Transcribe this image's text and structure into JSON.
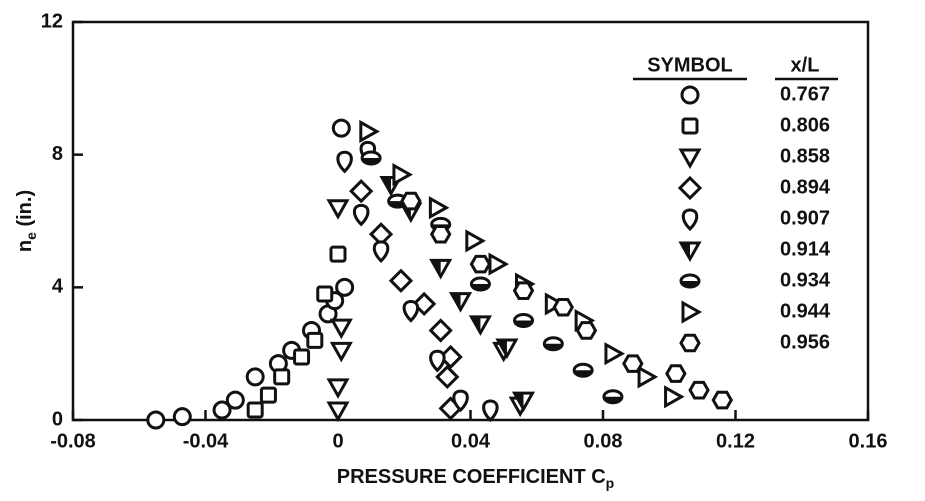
{
  "chart_data": {
    "type": "scatter",
    "xlabel": {
      "main": "PRESSURE COEFFICIENT C",
      "sub": "p"
    },
    "ylabel": {
      "main": "n",
      "sub": "e",
      "rest": " (in.)"
    },
    "xlim": [
      -0.08,
      0.16
    ],
    "xticks": [
      -0.08,
      -0.04,
      0,
      0.04,
      0.08,
      0.12,
      0.16
    ],
    "ylim": [
      0,
      12
    ],
    "yticks": [
      0,
      4,
      8,
      12
    ],
    "legend_headers": [
      "SYMBOL",
      "x/L"
    ],
    "series": [
      {
        "name": "0.767",
        "marker": "circle",
        "color": "#111111",
        "x": [
          -0.055,
          -0.047,
          -0.035,
          -0.031,
          -0.025,
          -0.018,
          -0.014,
          -0.008,
          -0.003,
          -0.001,
          0.002,
          0.001
        ],
        "values": [
          0,
          0.1,
          0.3,
          0.6,
          1.3,
          1.7,
          2.1,
          2.7,
          3.2,
          3.6,
          4.0,
          8.8
        ]
      },
      {
        "name": "0.806",
        "marker": "square",
        "color": "#111111",
        "x": [
          -0.025,
          -0.021,
          -0.017,
          -0.011,
          -0.007,
          -0.004,
          0
        ],
        "values": [
          0.3,
          0.75,
          1.3,
          1.9,
          2.4,
          3.8,
          5.0
        ]
      },
      {
        "name": "0.858",
        "marker": "tridown",
        "color": "#111111",
        "x": [
          0,
          0,
          0.001,
          0.001,
          0,
          0.05,
          0.055
        ],
        "values": [
          0.3,
          1.0,
          2.1,
          2.8,
          6.4,
          2.1,
          0.45
        ]
      },
      {
        "name": "0.894",
        "marker": "diamond",
        "color": "#111111",
        "x": [
          0.007,
          0.013,
          0.019,
          0.026,
          0.031,
          0.034,
          0.033,
          0.034
        ],
        "values": [
          6.9,
          5.6,
          4.2,
          3.5,
          2.7,
          1.9,
          1.3,
          0.35
        ]
      },
      {
        "name": "0.907",
        "marker": "teardrop",
        "color": "#111111",
        "x": [
          0.007,
          0.002,
          0.009,
          0.013,
          0.022,
          0.03,
          0.037,
          0.046
        ],
        "values": [
          6.2,
          7.8,
          8.1,
          5.1,
          3.3,
          1.8,
          0.6,
          0.3
        ]
      },
      {
        "name": "0.914",
        "marker": "halftri",
        "color": "#111111",
        "x": [
          0.016,
          0.022,
          0.031,
          0.037,
          0.043,
          0.051,
          0.056
        ],
        "values": [
          7.1,
          6.3,
          4.6,
          3.6,
          2.9,
          2.2,
          0.6
        ]
      },
      {
        "name": "0.934",
        "marker": "halfoval",
        "color": "#111111",
        "x": [
          0.01,
          0.018,
          0.031,
          0.043,
          0.056,
          0.065,
          0.074,
          0.083
        ],
        "values": [
          7.9,
          6.6,
          5.9,
          4.1,
          3.0,
          2.3,
          1.5,
          0.7
        ]
      },
      {
        "name": "0.944",
        "marker": "triright",
        "color": "#111111",
        "x": [
          0.009,
          0.019,
          0.03,
          0.041,
          0.048,
          0.056,
          0.065,
          0.074,
          0.083,
          0.093,
          0.101
        ],
        "values": [
          8.7,
          7.4,
          6.4,
          5.4,
          4.7,
          4.1,
          3.5,
          3.0,
          2.0,
          1.3,
          0.7
        ]
      },
      {
        "name": "0.956",
        "marker": "hexagon",
        "color": "#111111",
        "x": [
          0.022,
          0.031,
          0.043,
          0.056,
          0.068,
          0.075,
          0.089,
          0.102,
          0.109,
          0.116
        ],
        "values": [
          6.6,
          5.6,
          4.7,
          3.9,
          3.4,
          2.7,
          1.7,
          1.4,
          0.9,
          0.6
        ]
      }
    ]
  }
}
